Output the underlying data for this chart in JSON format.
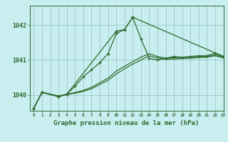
{
  "xlabel": "Graphe pression niveau de la mer (hPa)",
  "bg_color": "#c8eef0",
  "line_color": "#2d6a2d",
  "ylim": [
    1039.55,
    1042.55
  ],
  "xlim": [
    -0.5,
    23
  ],
  "yticks": [
    1040,
    1041,
    1042
  ],
  "ytick_labels": [
    "1040",
    "1041",
    "1042"
  ],
  "xticks": [
    0,
    1,
    2,
    3,
    4,
    5,
    6,
    7,
    8,
    9,
    10,
    11,
    12,
    13,
    14,
    15,
    16,
    17,
    18,
    19,
    20,
    21,
    22,
    23
  ],
  "line1_x": [
    0,
    1,
    3,
    4,
    10,
    11,
    12,
    23
  ],
  "line1_y": [
    1039.62,
    1040.08,
    1039.95,
    1040.02,
    1041.82,
    1041.87,
    1042.22,
    1041.1
  ],
  "line2_x": [
    0,
    1,
    3,
    4,
    5,
    6,
    7,
    8,
    9,
    10,
    11,
    12,
    13,
    14,
    15,
    16,
    17,
    18,
    19,
    20,
    21,
    22,
    23
  ],
  "line2_y": [
    1039.62,
    1040.08,
    1039.95,
    1040.02,
    1040.25,
    1040.52,
    1040.72,
    1040.92,
    1041.18,
    1041.75,
    1041.87,
    1042.22,
    1041.6,
    1041.05,
    1041.0,
    1041.05,
    1041.1,
    1041.08,
    1041.1,
    1041.12,
    1041.12,
    1041.2,
    1041.1
  ],
  "line3_x": [
    0,
    1,
    3,
    4,
    5,
    6,
    7,
    8,
    9,
    10,
    11,
    12,
    13,
    14,
    15,
    16,
    17,
    18,
    19,
    20,
    21,
    22,
    23
  ],
  "line3_y": [
    1039.62,
    1040.08,
    1039.97,
    1040.02,
    1040.07,
    1040.13,
    1040.22,
    1040.35,
    1040.48,
    1040.68,
    1040.82,
    1040.95,
    1041.08,
    1041.18,
    1041.1,
    1041.05,
    1041.06,
    1041.07,
    1041.08,
    1041.1,
    1041.1,
    1041.15,
    1041.08
  ],
  "line4_x": [
    0,
    1,
    3,
    4,
    5,
    6,
    7,
    8,
    9,
    10,
    11,
    12,
    13,
    14,
    15,
    16,
    17,
    18,
    19,
    20,
    21,
    22,
    23
  ],
  "line4_y": [
    1039.62,
    1040.08,
    1039.97,
    1040.02,
    1040.05,
    1040.1,
    1040.18,
    1040.3,
    1040.42,
    1040.6,
    1040.75,
    1040.88,
    1041.0,
    1041.12,
    1041.06,
    1041.02,
    1041.03,
    1041.04,
    1041.05,
    1041.07,
    1041.08,
    1041.12,
    1041.06
  ]
}
